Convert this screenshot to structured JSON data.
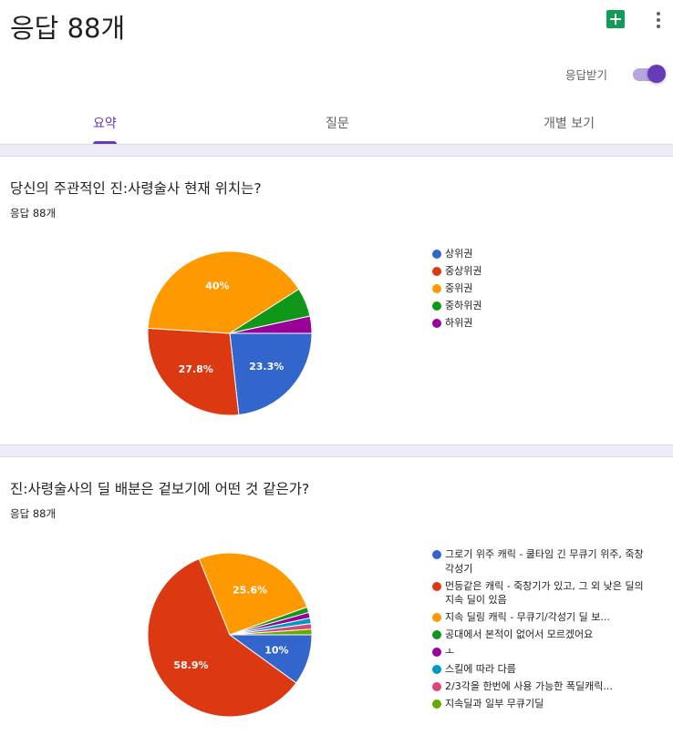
{
  "header": {
    "title": "응답 88개",
    "sheets_icon": "google-sheets-icon",
    "more_icon": "more-vert-icon",
    "accept_label": "응답받기",
    "accept_on": true,
    "accent_color": "#673ab7"
  },
  "tabs": [
    {
      "label": "요약",
      "active": true
    },
    {
      "label": "질문",
      "active": false
    },
    {
      "label": "개별 보기",
      "active": false
    }
  ],
  "questions": [
    {
      "title": "당신의 주관적인 진:사령술사 현재 위치는?",
      "count": "응답 88개",
      "legend": [
        {
          "label": "상위권",
          "color": "#3366cc"
        },
        {
          "label": "중상위권",
          "color": "#dc3912"
        },
        {
          "label": "중위권",
          "color": "#ff9900"
        },
        {
          "label": "중하위권",
          "color": "#109618"
        },
        {
          "label": "하위권",
          "color": "#990099"
        }
      ]
    },
    {
      "title": "진:사령술사의 딜 배분은 겉보기에 어떤 것 같은가?",
      "count": "응답 88개",
      "legend": [
        {
          "label": "그로기 위주 캐릭 - 쿨타임 긴 무큐기 위주, 죽창 각성기",
          "color": "#3366cc"
        },
        {
          "label": "먼등같은 캐릭 - 죽창기가 있고, 그 외 낮은 딜의 지속 딜이 있음",
          "color": "#dc3912"
        },
        {
          "label": "지속 딜링 캐릭 - 무큐기/각성기 딜 보...",
          "color": "#ff9900"
        },
        {
          "label": "공대에서 본적이 없어서 모르겠어요",
          "color": "#109618"
        },
        {
          "label": "ㅗ",
          "color": "#990099"
        },
        {
          "label": "스킬에 따라 다름",
          "color": "#0099c6"
        },
        {
          "label": "2/3각을 한번에 사용 가능한 폭딜캐릭...",
          "color": "#dd4477"
        },
        {
          "label": "지속딜과 일부 무큐기딜",
          "color": "#66aa00"
        }
      ]
    }
  ],
  "chart_data": [
    {
      "type": "pie",
      "title": "당신의 주관적인 진:사령술사 현재 위치는?",
      "categories": [
        "상위권",
        "중상위권",
        "중위권",
        "중하위권",
        "하위권"
      ],
      "values": [
        23.3,
        27.8,
        40,
        5.7,
        3.4
      ],
      "labels": [
        "23.3%",
        "27.8%",
        "40%",
        "",
        ""
      ],
      "colors": [
        "#3366cc",
        "#dc3912",
        "#ff9900",
        "#109618",
        "#990099"
      ],
      "legend": "right"
    },
    {
      "type": "pie",
      "title": "진:사령술사의 딜 배분은 겉보기에 어떤 것 같은가?",
      "categories": [
        "그로기 위주 캐릭 - 쿨타임 긴 무큐기 위주, 죽창 각성기",
        "먼등같은 캐릭 - 죽창기가 있고, 그 외 낮은 딜의 지속 딜이 있음",
        "지속 딜링 캐릭 - 무큐기/각성기 딜 보...",
        "공대에서 본적이 없어서 모르겠어요",
        "ㅗ",
        "스킬에 따라 다름",
        "2/3각을 한번에 사용 가능한 폭딜캐릭...",
        "지속딜과 일부 무큐기딜"
      ],
      "values": [
        10,
        58.9,
        25.6,
        1.1,
        1.1,
        1.1,
        1.1,
        1.1
      ],
      "labels": [
        "10%",
        "58.9%",
        "25.6%",
        "",
        "",
        "",
        "",
        ""
      ],
      "colors": [
        "#3366cc",
        "#dc3912",
        "#ff9900",
        "#109618",
        "#990099",
        "#0099c6",
        "#dd4477",
        "#66aa00"
      ],
      "legend": "right"
    }
  ]
}
